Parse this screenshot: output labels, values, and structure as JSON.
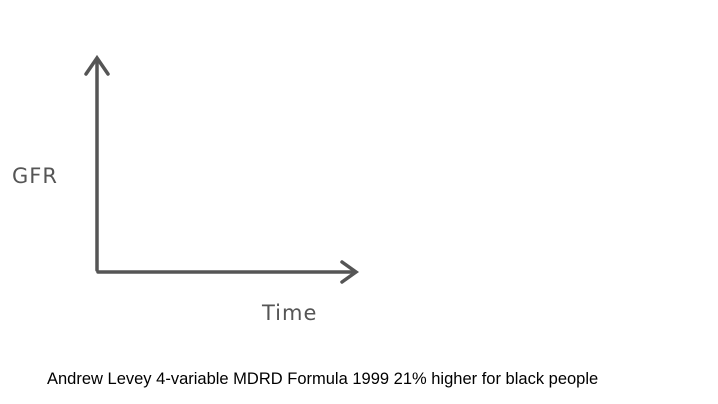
{
  "y_axis": {
    "label": "GFR"
  },
  "x_axis": {
    "label": "Time"
  },
  "caption": "Andrew Levey 4-variable MDRD Formula 1999 21% higher for black people"
}
